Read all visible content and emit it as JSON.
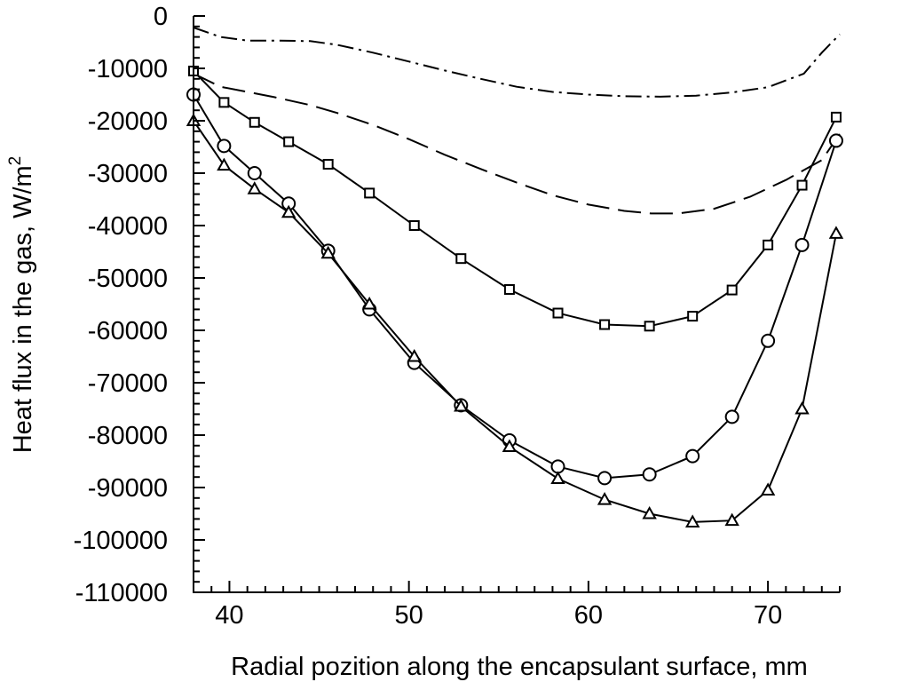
{
  "chart_data": {
    "type": "line",
    "title": "",
    "xlabel": "Radial pozition along the encapsulant surface, mm",
    "ylabel": {
      "base": "Heat flux in the gas, W/m",
      "sup": "2"
    },
    "xlim": [
      38,
      74
    ],
    "ylim": [
      -110000,
      0
    ],
    "xticks": [
      40,
      50,
      60,
      70
    ],
    "xtick_labels": [
      "40",
      "50",
      "60",
      "70"
    ],
    "yticks": [
      0,
      -10000,
      -20000,
      -30000,
      -40000,
      -50000,
      -60000,
      -70000,
      -80000,
      -90000,
      -100000,
      -110000
    ],
    "ytick_labels": [
      "0",
      "-10000",
      "-20000",
      "-30000",
      "-40000",
      "-50000",
      "-60000",
      "-70000",
      "-80000",
      "-90000",
      "-100000",
      "-110000"
    ],
    "grid": false,
    "series": [
      {
        "style": "dash-dot",
        "marker": "none",
        "x": [
          38.0,
          39.5,
          41.0,
          42.5,
          44.5,
          46.0,
          48.0,
          50.0,
          52.0,
          54.0,
          56.0,
          58.0,
          60.0,
          62.0,
          64.0,
          66.0,
          68.0,
          70.0,
          72.0,
          73.0,
          74.0
        ],
        "y": [
          -2200,
          -4000,
          -4700,
          -4700,
          -4800,
          -5500,
          -7000,
          -8700,
          -10400,
          -12000,
          -13500,
          -14500,
          -15000,
          -15300,
          -15400,
          -15200,
          -14600,
          -13600,
          -11000,
          -7000,
          -3500
        ]
      },
      {
        "style": "dashed",
        "marker": "none",
        "x": [
          38.0,
          39.5,
          41.0,
          42.5,
          44.5,
          46.0,
          48.0,
          50.0,
          52.0,
          54.0,
          56.0,
          58.0,
          60.0,
          62.0,
          63.5,
          65.0,
          67.0,
          69.0,
          71.0,
          73.0,
          74.0
        ],
        "y": [
          -11000,
          -13500,
          -14500,
          -15500,
          -17000,
          -18500,
          -20800,
          -23500,
          -26500,
          -29200,
          -31800,
          -34200,
          -36000,
          -37200,
          -37700,
          -37700,
          -36800,
          -34500,
          -31300,
          -27500,
          -22500
        ]
      },
      {
        "style": "solid",
        "marker": "square",
        "x": [
          38.0,
          39.7,
          41.4,
          43.3,
          45.5,
          47.8,
          50.3,
          52.9,
          55.6,
          58.3,
          60.9,
          63.4,
          65.8,
          68.0,
          70.0,
          71.9,
          73.8
        ],
        "y": [
          -10500,
          -16500,
          -20300,
          -24000,
          -28300,
          -33800,
          -40000,
          -46300,
          -52200,
          -56700,
          -58900,
          -59200,
          -57300,
          -52300,
          -43700,
          -32300,
          -19300
        ]
      },
      {
        "style": "solid",
        "marker": "circle",
        "x": [
          38.0,
          39.7,
          41.4,
          43.3,
          45.5,
          47.8,
          50.3,
          52.9,
          55.6,
          58.3,
          60.9,
          63.4,
          65.8,
          68.0,
          70.0,
          71.9,
          73.8
        ],
        "y": [
          -15000,
          -24800,
          -30000,
          -35800,
          -44800,
          -56000,
          -66200,
          -74300,
          -81000,
          -86000,
          -88200,
          -87500,
          -84000,
          -76500,
          -62000,
          -43700,
          -23800
        ]
      },
      {
        "style": "solid",
        "marker": "triangle",
        "x": [
          38.0,
          39.7,
          41.4,
          43.3,
          45.5,
          47.8,
          50.3,
          52.9,
          55.6,
          58.3,
          60.9,
          63.4,
          65.8,
          68.0,
          70.0,
          71.9,
          73.8
        ],
        "y": [
          -20000,
          -28500,
          -33000,
          -37500,
          -45300,
          -55000,
          -65000,
          -74500,
          -82200,
          -88300,
          -92300,
          -95000,
          -96600,
          -96300,
          -90500,
          -75000,
          -41500
        ]
      }
    ]
  }
}
